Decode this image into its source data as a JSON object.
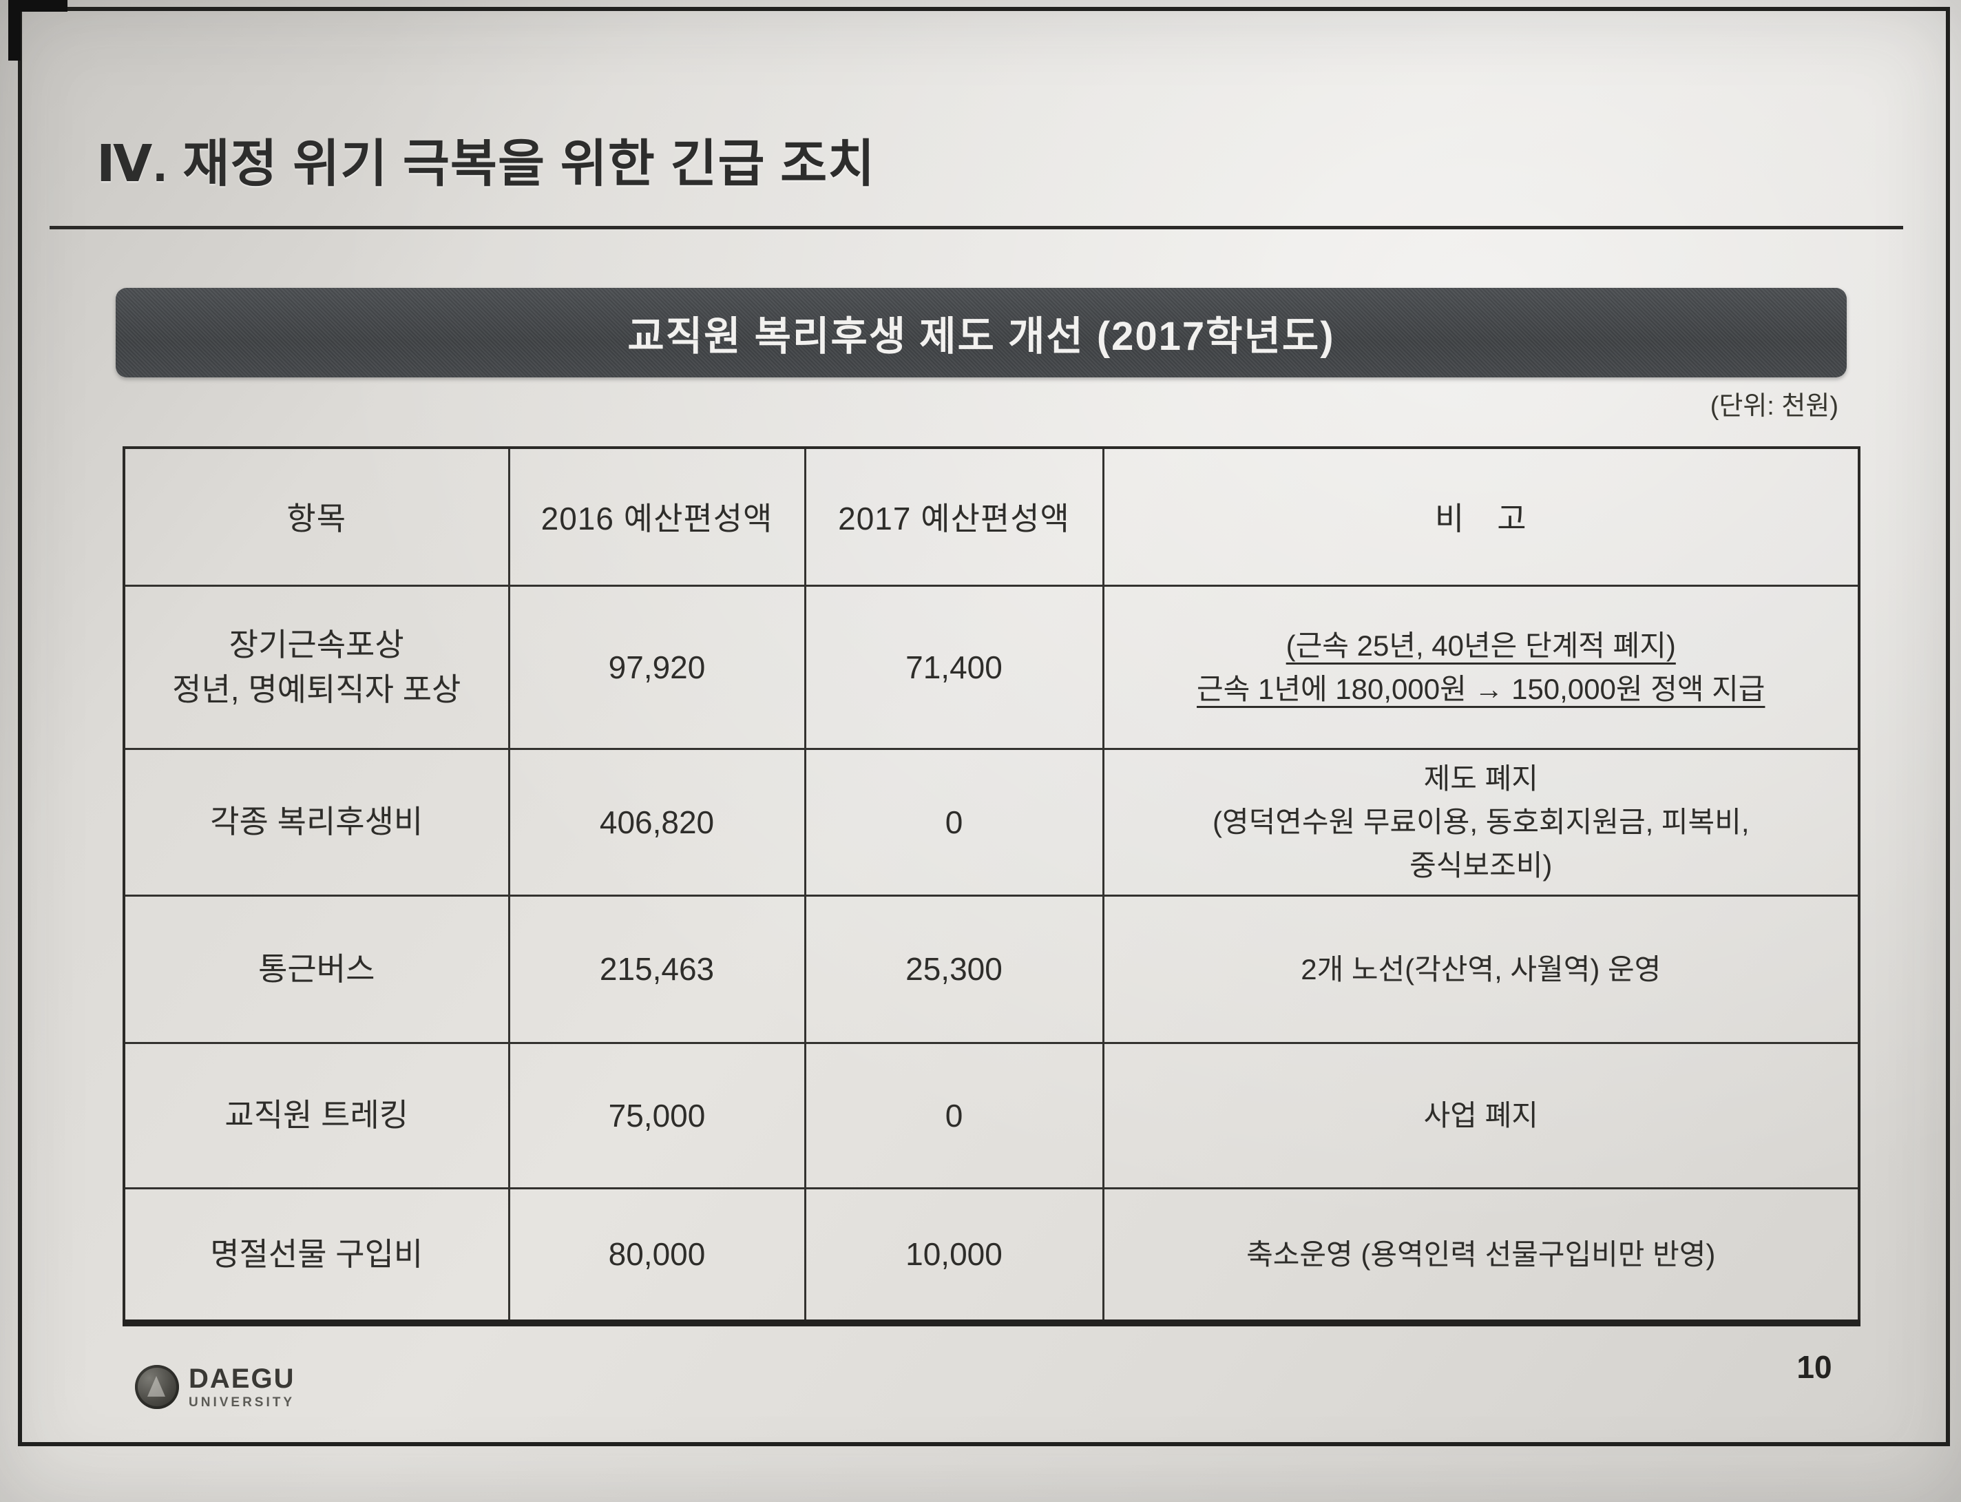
{
  "slide": {
    "section_title": "Ⅳ. 재정 위기 극복을 위한 긴급 조치",
    "banner_title": "교직원 복리후생 제도 개선 (2017학년도)",
    "unit_note": "(단위: 천원)",
    "page_number": "10"
  },
  "footer": {
    "logo_primary": "DAEGU",
    "logo_secondary": "UNIVERSITY"
  },
  "table": {
    "headers": {
      "item": "항목",
      "budget_2016": "2016 예산편성액",
      "budget_2017": "2017 예산편성액",
      "remark": "비　고"
    },
    "rows": [
      {
        "item": "장기근속포상\n정년, 명예퇴직자 포상",
        "budget_2016": "97,920",
        "budget_2017": "71,400",
        "remark": "(근속 25년, 40년은 단계적 폐지)\n근속 1년에 180,000원 → 150,000원 정액 지급"
      },
      {
        "item": "각종 복리후생비",
        "budget_2016": "406,820",
        "budget_2017": "0",
        "remark": "제도 폐지\n(영덕연수원 무료이용, 동호회지원금, 피복비,\n중식보조비)"
      },
      {
        "item": "통근버스",
        "budget_2016": "215,463",
        "budget_2017": "25,300",
        "remark": "2개 노선(각산역, 사월역) 운영"
      },
      {
        "item": "교직원 트레킹",
        "budget_2016": "75,000",
        "budget_2017": "0",
        "remark": "사업 폐지"
      },
      {
        "item": "명절선물 구입비",
        "budget_2016": "80,000",
        "budget_2017": "10,000",
        "remark": "축소운영 (용역인력 선물구입비만 반영)"
      }
    ]
  }
}
